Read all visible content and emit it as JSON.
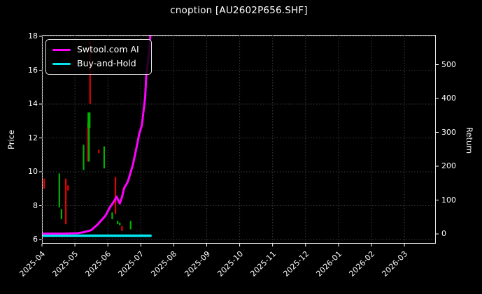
{
  "window": {
    "title": "cnoption [AU2602P656.SHF]"
  },
  "chart_data": {
    "type": "candlestick+line",
    "title": "cnoption [AU2602P656.SHF]",
    "background": "#000000",
    "grid": {
      "on": true,
      "style": "dotted",
      "color": "#3c3c3c"
    },
    "left_axis": {
      "label": "Price",
      "ticks": [
        6,
        8,
        10,
        12,
        14,
        16,
        18
      ],
      "range": [
        5.7,
        18.1
      ]
    },
    "right_axis": {
      "label": "Return",
      "ticks": [
        0,
        100,
        200,
        300,
        400,
        500
      ],
      "range": [
        -29,
        588
      ]
    },
    "x_axis": {
      "tick_labels": [
        "2025-04",
        "2025-05",
        "2025-06",
        "2025-07",
        "2025-08",
        "2025-09",
        "2025-10",
        "2025-11",
        "2025-12",
        "2026-01",
        "2026-02",
        "2026-03"
      ],
      "label_rotation_deg": -45
    },
    "legend": {
      "position": "upper-left",
      "entries": [
        {
          "label": "Swtool.com AI",
          "color": "#ff00ff"
        },
        {
          "label": "Buy-and-Hold",
          "color": "#00e5ee"
        }
      ]
    },
    "series": [
      {
        "name": "Swtool.com AI",
        "type": "line",
        "axis": "return",
        "color": "#ff00ff",
        "width": 3,
        "points": [
          [
            "2025-04-01",
            0
          ],
          [
            "2025-04-20",
            0
          ],
          [
            "2025-05-03",
            1
          ],
          [
            "2025-05-09",
            4
          ],
          [
            "2025-05-16",
            10
          ],
          [
            "2025-05-22",
            27
          ],
          [
            "2025-05-29",
            52
          ],
          [
            "2025-06-03",
            78
          ],
          [
            "2025-06-07",
            97
          ],
          [
            "2025-06-09",
            109
          ],
          [
            "2025-06-12",
            89
          ],
          [
            "2025-06-14",
            107
          ],
          [
            "2025-06-16",
            134
          ],
          [
            "2025-06-19",
            151
          ],
          [
            "2025-06-20",
            159
          ],
          [
            "2025-06-24",
            202
          ],
          [
            "2025-06-27",
            247
          ],
          [
            "2025-06-30",
            295
          ],
          [
            "2025-07-02",
            320
          ],
          [
            "2025-07-05",
            402
          ],
          [
            "2025-07-06",
            464
          ],
          [
            "2025-07-09",
            546
          ],
          [
            "2025-07-10",
            598
          ]
        ]
      },
      {
        "name": "Buy-and-Hold",
        "type": "line",
        "axis": "return",
        "color": "#00e5ee",
        "width": 3.5,
        "points": [
          [
            "2025-04-01",
            0
          ],
          [
            "2025-07-10",
            0
          ]
        ]
      }
    ],
    "candle_colors": {
      "up": "#00b300",
      "down": "#e60000"
    },
    "candles": [
      {
        "date": "2025-04-03",
        "low": 9.0,
        "high": 9.6,
        "dir": "down"
      },
      {
        "date": "2025-04-17",
        "low": 7.9,
        "high": 9.9,
        "dir": "up"
      },
      {
        "date": "2025-04-19",
        "low": 7.2,
        "high": 7.8,
        "dir": "up"
      },
      {
        "date": "2025-04-23",
        "low": 6.9,
        "high": 9.6,
        "dir": "down"
      },
      {
        "date": "2025-04-25",
        "low": 8.9,
        "high": 9.2,
        "dir": "down"
      },
      {
        "date": "2025-05-09",
        "low": 10.1,
        "high": 11.6,
        "dir": "up"
      },
      {
        "date": "2025-05-13",
        "low": 10.6,
        "high": 12.9,
        "dir": "down"
      },
      {
        "date": "2025-05-14",
        "low": 10.6,
        "high": 13.5,
        "dir": "up",
        "body": [
          12.6,
          13.5
        ]
      },
      {
        "date": "2025-05-15",
        "low": 14.0,
        "high": 17.7,
        "dir": "down"
      },
      {
        "date": "2025-05-23",
        "low": 11.1,
        "high": 11.3,
        "dir": "down"
      },
      {
        "date": "2025-05-28",
        "low": 10.2,
        "high": 11.5,
        "dir": "up"
      },
      {
        "date": "2025-06-05",
        "low": 7.2,
        "high": 7.6,
        "dir": "up"
      },
      {
        "date": "2025-06-08",
        "low": 7.5,
        "high": 9.7,
        "dir": "down"
      },
      {
        "date": "2025-06-10",
        "low": 6.9,
        "high": 7.1,
        "dir": "up"
      },
      {
        "date": "2025-06-12",
        "low": 6.85,
        "high": 7.0,
        "dir": "up"
      },
      {
        "date": "2025-06-14",
        "low": 6.5,
        "high": 6.8,
        "dir": "down"
      },
      {
        "date": "2025-06-22",
        "low": 6.6,
        "high": 7.1,
        "dir": "up"
      }
    ]
  }
}
